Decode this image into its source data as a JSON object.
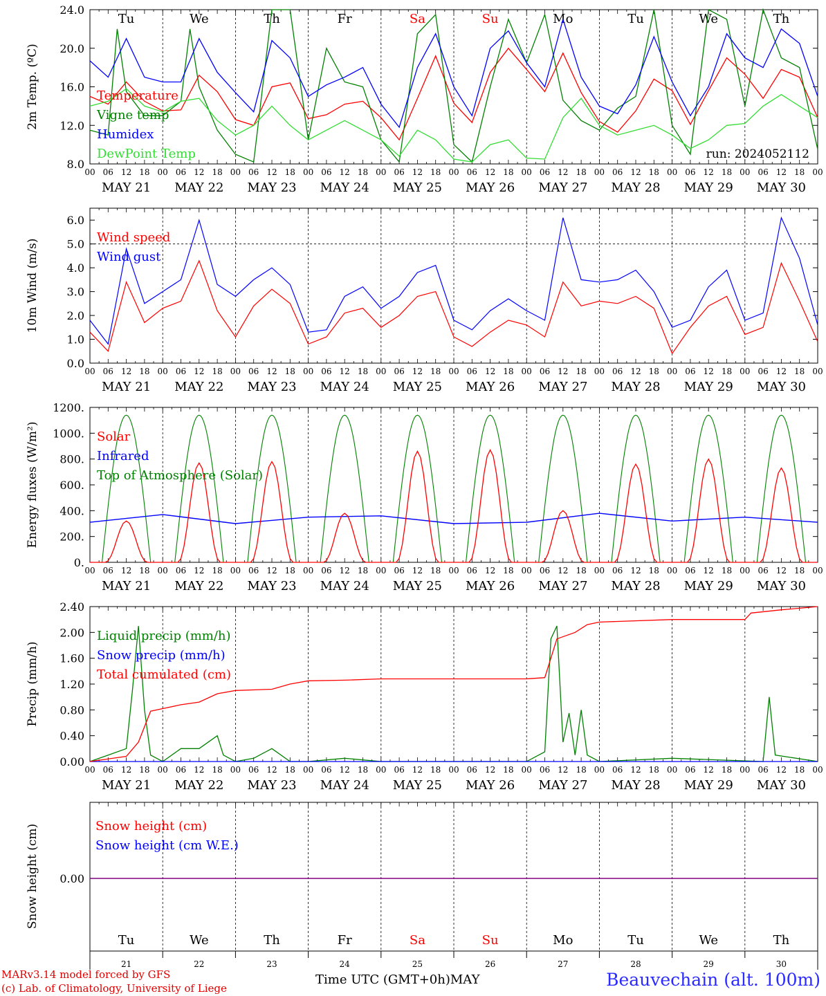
{
  "station": "Beauvechain (alt. 100m)",
  "credit_line1": "MARv3.14 model forced by GFS",
  "credit_line2": "(c) Lab. of Climatology, University of Liege",
  "x_axis_title": "Time UTC (GMT+0h)",
  "x_axis_month": "MAY",
  "run_label": "run: 2024052112",
  "hour_ticks": [
    "00",
    "06",
    "12",
    "18"
  ],
  "end_tick": "00",
  "colors": {
    "red": "#ff0000",
    "blue": "#0000ff",
    "green": "#008000",
    "lightgreen": "#33dd33",
    "weekend": "#ff0000",
    "purple": "#800080"
  },
  "chart_data": [
    {
      "type": "line",
      "ylabel": "2m Temp. (ºC)",
      "ylim": [
        8,
        24
      ],
      "yticks": [
        "8.0",
        "12.0",
        "16.0",
        "20.0",
        "24.0"
      ],
      "dates": [
        "MAY 21",
        "MAY 22",
        "MAY 23",
        "MAY 24",
        "MAY 25",
        "MAY 26",
        "MAY 27",
        "MAY 28",
        "MAY 29",
        "MAY 30"
      ],
      "weekdays": [
        "Tu",
        "We",
        "Th",
        "Fr",
        "Sa",
        "Su",
        "Mo",
        "Tu",
        "We",
        "Th"
      ],
      "weekend_days": [
        "Sa",
        "Su"
      ],
      "x_unit": "hours since 2024-05-21 00 UTC",
      "series": [
        {
          "name": "Temperature",
          "color": "red",
          "x": [
            0,
            6,
            12,
            18,
            24,
            30,
            36,
            42,
            48,
            54,
            60,
            66,
            72,
            78,
            84,
            90,
            96,
            102,
            108,
            114,
            120,
            126,
            132,
            138,
            144,
            150,
            156,
            162,
            168,
            174,
            180,
            186,
            192,
            198,
            204,
            210,
            216,
            222,
            228,
            234,
            240
          ],
          "y": [
            15.0,
            14.2,
            16.5,
            14.5,
            13.5,
            13.6,
            17.2,
            15.5,
            12.6,
            12.0,
            16.0,
            16.4,
            12.7,
            13.1,
            14.2,
            14.5,
            12.8,
            10.5,
            14.8,
            19.2,
            14.3,
            12.3,
            17.5,
            20.0,
            17.8,
            15.5,
            19.5,
            15.4,
            12.4,
            11.3,
            13.5,
            16.8,
            15.6,
            12.1,
            15.6,
            19.0,
            17.3,
            14.8,
            17.8,
            17.0,
            12.8
          ]
        },
        {
          "name": "Vigne temp",
          "color": "green",
          "x": [
            0,
            6,
            9,
            12,
            18,
            24,
            30,
            33,
            36,
            42,
            48,
            54,
            60,
            66,
            72,
            78,
            84,
            90,
            96,
            102,
            108,
            114,
            120,
            126,
            132,
            138,
            144,
            150,
            156,
            162,
            168,
            174,
            180,
            186,
            192,
            198,
            204,
            210,
            216,
            222,
            228,
            234,
            240
          ],
          "y": [
            11.5,
            11.0,
            22.0,
            15.5,
            13.0,
            13.0,
            14.5,
            22.0,
            16.0,
            11.5,
            9.0,
            8.2,
            24.0,
            24.0,
            10.5,
            20.0,
            16.5,
            16.0,
            10.5,
            8.2,
            21.5,
            23.5,
            10.0,
            8.2,
            16.0,
            23.0,
            18.5,
            23.5,
            14.6,
            12.5,
            11.5,
            13.8,
            15.0,
            24.0,
            12.0,
            9.0,
            24.0,
            23.0,
            14.0,
            24.0,
            19.0,
            18.0,
            9.5
          ]
        },
        {
          "name": "Humidex",
          "color": "blue",
          "x": [
            0,
            6,
            12,
            18,
            24,
            30,
            36,
            42,
            48,
            54,
            60,
            66,
            72,
            78,
            84,
            90,
            96,
            102,
            108,
            114,
            120,
            126,
            132,
            138,
            144,
            150,
            156,
            162,
            168,
            174,
            180,
            186,
            192,
            198,
            204,
            210,
            216,
            222,
            228,
            234,
            240
          ],
          "y": [
            18.7,
            17.0,
            21.0,
            17.0,
            16.5,
            16.5,
            21.0,
            17.5,
            15.4,
            13.4,
            20.8,
            19.0,
            15.0,
            16.2,
            17.0,
            18.0,
            14.2,
            11.8,
            18.0,
            21.5,
            16.0,
            13.0,
            20.0,
            21.8,
            18.5,
            16.0,
            23.0,
            17.0,
            14.0,
            13.2,
            16.2,
            21.2,
            16.5,
            13.0,
            16.0,
            21.5,
            19.0,
            18.0,
            22.0,
            20.5,
            15.0
          ]
        },
        {
          "name": "DewPoint Temp",
          "color": "lightgreen",
          "x": [
            0,
            6,
            12,
            18,
            24,
            30,
            36,
            42,
            48,
            54,
            60,
            66,
            72,
            78,
            84,
            90,
            96,
            102,
            108,
            114,
            120,
            126,
            132,
            138,
            144,
            150,
            156,
            162,
            168,
            174,
            180,
            186,
            192,
            198,
            204,
            210,
            216,
            222,
            228,
            234,
            240
          ],
          "y": [
            14.0,
            14.5,
            15.8,
            14.0,
            13.4,
            14.5,
            14.8,
            12.5,
            11.0,
            12.0,
            14.0,
            12.0,
            10.5,
            11.5,
            12.5,
            11.5,
            10.5,
            8.8,
            11.5,
            10.5,
            8.5,
            8.2,
            10.0,
            10.5,
            8.6,
            8.5,
            12.8,
            14.8,
            12.0,
            11.0,
            11.5,
            12.0,
            11.0,
            9.6,
            10.5,
            12.0,
            12.2,
            14.0,
            15.2,
            14.0,
            12.8
          ]
        }
      ],
      "annotations": [
        {
          "text": "run: 2024052112"
        }
      ]
    },
    {
      "type": "line",
      "ylabel": "10m Wind (m/s)",
      "ylim": [
        0,
        6.5
      ],
      "yticks": [
        "0.0",
        "1.0",
        "2.0",
        "3.0",
        "4.0",
        "5.0",
        "6.0"
      ],
      "dates": [
        "MAY 21",
        "MAY 22",
        "MAY 23",
        "MAY 24",
        "MAY 25",
        "MAY 26",
        "MAY 27",
        "MAY 28",
        "MAY 29",
        "MAY 30"
      ],
      "reference_line": 5.0,
      "series": [
        {
          "name": "Wind speed",
          "color": "red",
          "x": [
            0,
            6,
            12,
            18,
            24,
            30,
            36,
            42,
            48,
            54,
            60,
            66,
            72,
            78,
            84,
            90,
            96,
            102,
            108,
            114,
            120,
            126,
            132,
            138,
            144,
            150,
            156,
            162,
            168,
            174,
            180,
            186,
            192,
            198,
            204,
            210,
            216,
            222,
            228,
            234,
            240
          ],
          "y": [
            1.3,
            0.5,
            3.4,
            1.7,
            2.3,
            2.6,
            4.3,
            2.2,
            1.1,
            2.4,
            3.1,
            2.5,
            0.8,
            1.1,
            2.1,
            2.3,
            1.5,
            2.0,
            2.8,
            3.0,
            1.1,
            0.7,
            1.3,
            1.8,
            1.6,
            1.1,
            3.4,
            2.4,
            2.6,
            2.5,
            2.8,
            2.3,
            0.4,
            1.5,
            2.4,
            2.8,
            1.2,
            1.5,
            4.2,
            2.6,
            0.9
          ]
        },
        {
          "name": "Wind gust",
          "color": "blue",
          "x": [
            0,
            6,
            12,
            18,
            24,
            30,
            36,
            42,
            48,
            54,
            60,
            66,
            72,
            78,
            84,
            90,
            96,
            102,
            108,
            114,
            120,
            126,
            132,
            138,
            144,
            150,
            156,
            162,
            168,
            174,
            180,
            186,
            192,
            198,
            204,
            210,
            216,
            222,
            228,
            234,
            240
          ],
          "y": [
            1.8,
            0.8,
            4.8,
            2.5,
            3.0,
            3.5,
            6.0,
            3.3,
            2.8,
            3.5,
            4.0,
            3.3,
            1.3,
            1.4,
            2.8,
            3.2,
            2.3,
            2.8,
            3.8,
            4.1,
            1.8,
            1.4,
            2.2,
            2.7,
            2.2,
            1.8,
            6.1,
            3.5,
            3.4,
            3.5,
            3.9,
            3.0,
            1.5,
            1.8,
            3.2,
            3.9,
            1.8,
            2.1,
            6.1,
            4.4,
            1.6
          ]
        }
      ]
    },
    {
      "type": "line",
      "ylabel": "Energy fluxes (W/m²)",
      "ylim": [
        0,
        1200
      ],
      "yticks": [
        "0.",
        "200.",
        "400.",
        "600.",
        "800.",
        "1000.",
        "1200."
      ],
      "dates": [
        "MAY 21",
        "MAY 22",
        "MAY 23",
        "MAY 24",
        "MAY 25",
        "MAY 26",
        "MAY 27",
        "MAY 28",
        "MAY 29",
        "MAY 30"
      ],
      "series": [
        {
          "name": "Solar",
          "color": "red",
          "daily_peaks": [
            320,
            770,
            780,
            380,
            860,
            870,
            400,
            760,
            800,
            730
          ]
        },
        {
          "name": "Infrared",
          "color": "blue",
          "x": [
            0,
            24,
            48,
            72,
            96,
            120,
            144,
            168,
            192,
            216,
            240
          ],
          "y": [
            310,
            370,
            300,
            350,
            360,
            300,
            310,
            380,
            320,
            350,
            310
          ]
        },
        {
          "name": "Top of Atmosphere (Solar)",
          "color": "green",
          "daily_peak": 1140
        }
      ]
    },
    {
      "type": "line",
      "ylabel": "Precip (mm/h)",
      "ylim": [
        0,
        2.4
      ],
      "yticks": [
        "0.00",
        "0.40",
        "0.80",
        "1.20",
        "1.60",
        "2.00",
        "2.40"
      ],
      "dates": [
        "MAY 21",
        "MAY 22",
        "MAY 23",
        "MAY 24",
        "MAY 25",
        "MAY 26",
        "MAY 27",
        "MAY 28",
        "MAY 29",
        "MAY 30"
      ],
      "series": [
        {
          "name": "Liquid precip (mm/h)",
          "color": "green",
          "x": [
            0,
            6,
            12,
            14,
            16,
            18,
            20,
            22,
            24,
            30,
            36,
            42,
            44,
            48,
            54,
            60,
            66,
            72,
            84,
            96,
            144,
            150,
            152,
            154,
            156,
            158,
            160,
            162,
            164,
            168,
            192,
            222,
            224,
            226,
            240
          ],
          "y": [
            0,
            0.1,
            0.2,
            1.1,
            2.1,
            0.8,
            0.1,
            0.05,
            0,
            0.2,
            0.2,
            0.4,
            0.1,
            0,
            0.05,
            0.2,
            0,
            0,
            0.05,
            0,
            0,
            0.15,
            1.9,
            2.1,
            0.3,
            0.75,
            0.1,
            0.8,
            0.1,
            0,
            0.05,
            0,
            1.0,
            0.1,
            0
          ]
        },
        {
          "name": "Snow precip (mm/h)",
          "color": "blue",
          "x": [
            0,
            240
          ],
          "y": [
            0,
            0
          ]
        },
        {
          "name": "Total cumulated (cm)",
          "color": "red",
          "x": [
            0,
            12,
            16,
            20,
            24,
            30,
            36,
            42,
            48,
            60,
            66,
            72,
            84,
            96,
            120,
            144,
            150,
            154,
            160,
            164,
            168,
            192,
            216,
            218,
            228,
            240
          ],
          "y": [
            0,
            0.08,
            0.3,
            0.78,
            0.82,
            0.88,
            0.92,
            1.05,
            1.1,
            1.12,
            1.2,
            1.25,
            1.26,
            1.28,
            1.28,
            1.28,
            1.3,
            1.9,
            2.0,
            2.12,
            2.16,
            2.2,
            2.2,
            2.3,
            2.35,
            2.4
          ]
        }
      ]
    },
    {
      "type": "line",
      "ylabel": "Snow height (cm)",
      "yticks": [
        "0.00"
      ],
      "weekdays": [
        "Tu",
        "We",
        "Th",
        "Fr",
        "Sa",
        "Su",
        "Mo",
        "Tu",
        "We",
        "Th"
      ],
      "day_numbers": [
        "21",
        "22",
        "23",
        "24",
        "25",
        "26",
        "27",
        "28",
        "29",
        "30"
      ],
      "series": [
        {
          "name": "Snow height (cm)",
          "color": "red",
          "x": [
            0,
            240
          ],
          "y": [
            0,
            0
          ]
        },
        {
          "name": "Snow height (cm W.E.)",
          "color": "blue",
          "x": [
            0,
            240
          ],
          "y": [
            0,
            0
          ]
        }
      ]
    }
  ]
}
